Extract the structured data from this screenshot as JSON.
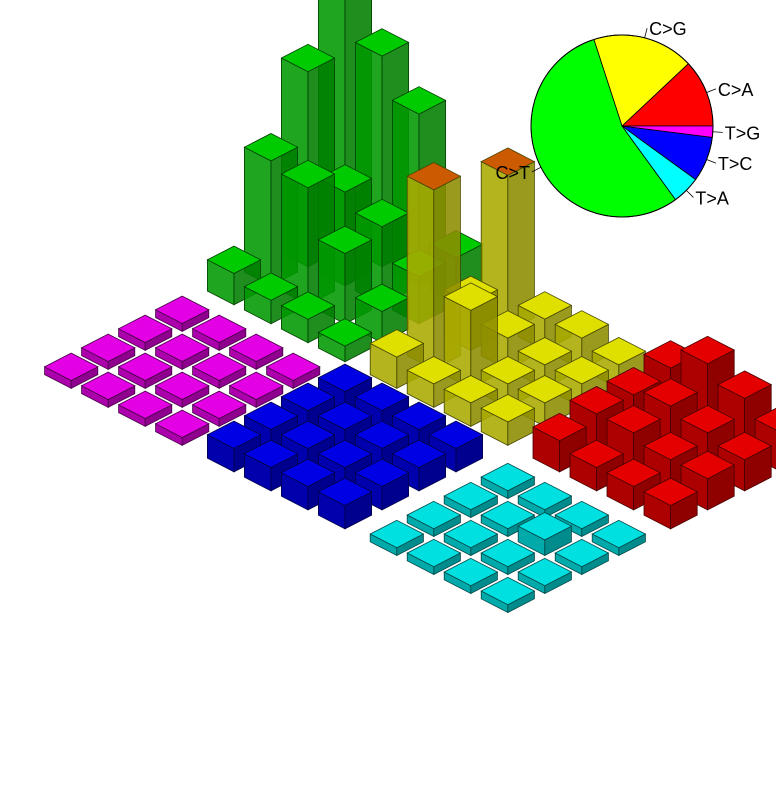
{
  "chart_data": [
    {
      "type": "bar3d",
      "title": "",
      "row_labels": [
        "",
        "",
        "",
        ""
      ],
      "col_labels": [
        "",
        "",
        "",
        ""
      ],
      "colors": {
        "T>G": "#cc00cc",
        "C>A": "#cc0000",
        "C>T": "#00b400",
        "C>G": "#c8c800",
        "T>C": "#0000cc",
        "T>A": "#00c8c8",
        "highlight": "#cc5a00"
      },
      "panels": [
        {
          "name": "C>T",
          "heights": [
            [
              0.32,
              0.27,
              0.22,
              0.06
            ],
            [
              0.25,
              0.12,
              0.1,
              0.06
            ],
            [
              0.16,
              0.15,
              0.09,
              0.04
            ],
            [
              0.04,
              0.03,
              0.03,
              0.02
            ]
          ]
        },
        {
          "name": "C>G",
          "heights": [
            [
              0.2,
              0.04,
              0.04,
              0.03
            ],
            [
              0.06,
              0.04,
              0.03,
              0.03
            ],
            [
              0.23,
              0.1,
              0.03,
              0.03
            ],
            [
              0.04,
              0.03,
              0.03,
              0.03
            ]
          ]
        },
        {
          "name": "T>G",
          "heights": [
            [
              0.01,
              0.01,
              0.01,
              0.01
            ],
            [
              0.01,
              0.01,
              0.01,
              0.01
            ],
            [
              0.01,
              0.01,
              0.01,
              0.01
            ],
            [
              0.01,
              0.01,
              0.01,
              0.01
            ]
          ]
        },
        {
          "name": "C>A",
          "heights": [
            [
              0.06,
              0.09,
              0.07,
              0.05
            ],
            [
              0.05,
              0.06,
              0.05,
              0.04
            ],
            [
              0.05,
              0.05,
              0.04,
              0.04
            ],
            [
              0.04,
              0.03,
              0.03,
              0.03
            ]
          ]
        },
        {
          "name": "T>C",
          "heights": [
            [
              0.03,
              0.03,
              0.03,
              0.03
            ],
            [
              0.03,
              0.03,
              0.03,
              0.03
            ],
            [
              0.03,
              0.03,
              0.03,
              0.03
            ],
            [
              0.03,
              0.03,
              0.03,
              0.03
            ]
          ]
        },
        {
          "name": "T>A",
          "heights": [
            [
              0.01,
              0.01,
              0.01,
              0.01
            ],
            [
              0.01,
              0.01,
              0.02,
              0.01
            ],
            [
              0.01,
              0.01,
              0.01,
              0.01
            ],
            [
              0.01,
              0.01,
              0.01,
              0.01
            ]
          ]
        }
      ]
    },
    {
      "type": "pie",
      "title": "",
      "slices": [
        {
          "label": "C>A",
          "value": 12,
          "color": "#ff0000"
        },
        {
          "label": "T>G",
          "value": 2,
          "color": "#ff00ff"
        },
        {
          "label": "T>C",
          "value": 8,
          "color": "#0000ff"
        },
        {
          "label": "T>A",
          "value": 5,
          "color": "#00ffff"
        },
        {
          "label": "C>T",
          "value": 55,
          "color": "#00ff00"
        },
        {
          "label": "C>G",
          "value": 18,
          "color": "#ffff00"
        }
      ],
      "start_angle_deg": 0,
      "direction": "clockwise-from-right"
    }
  ]
}
